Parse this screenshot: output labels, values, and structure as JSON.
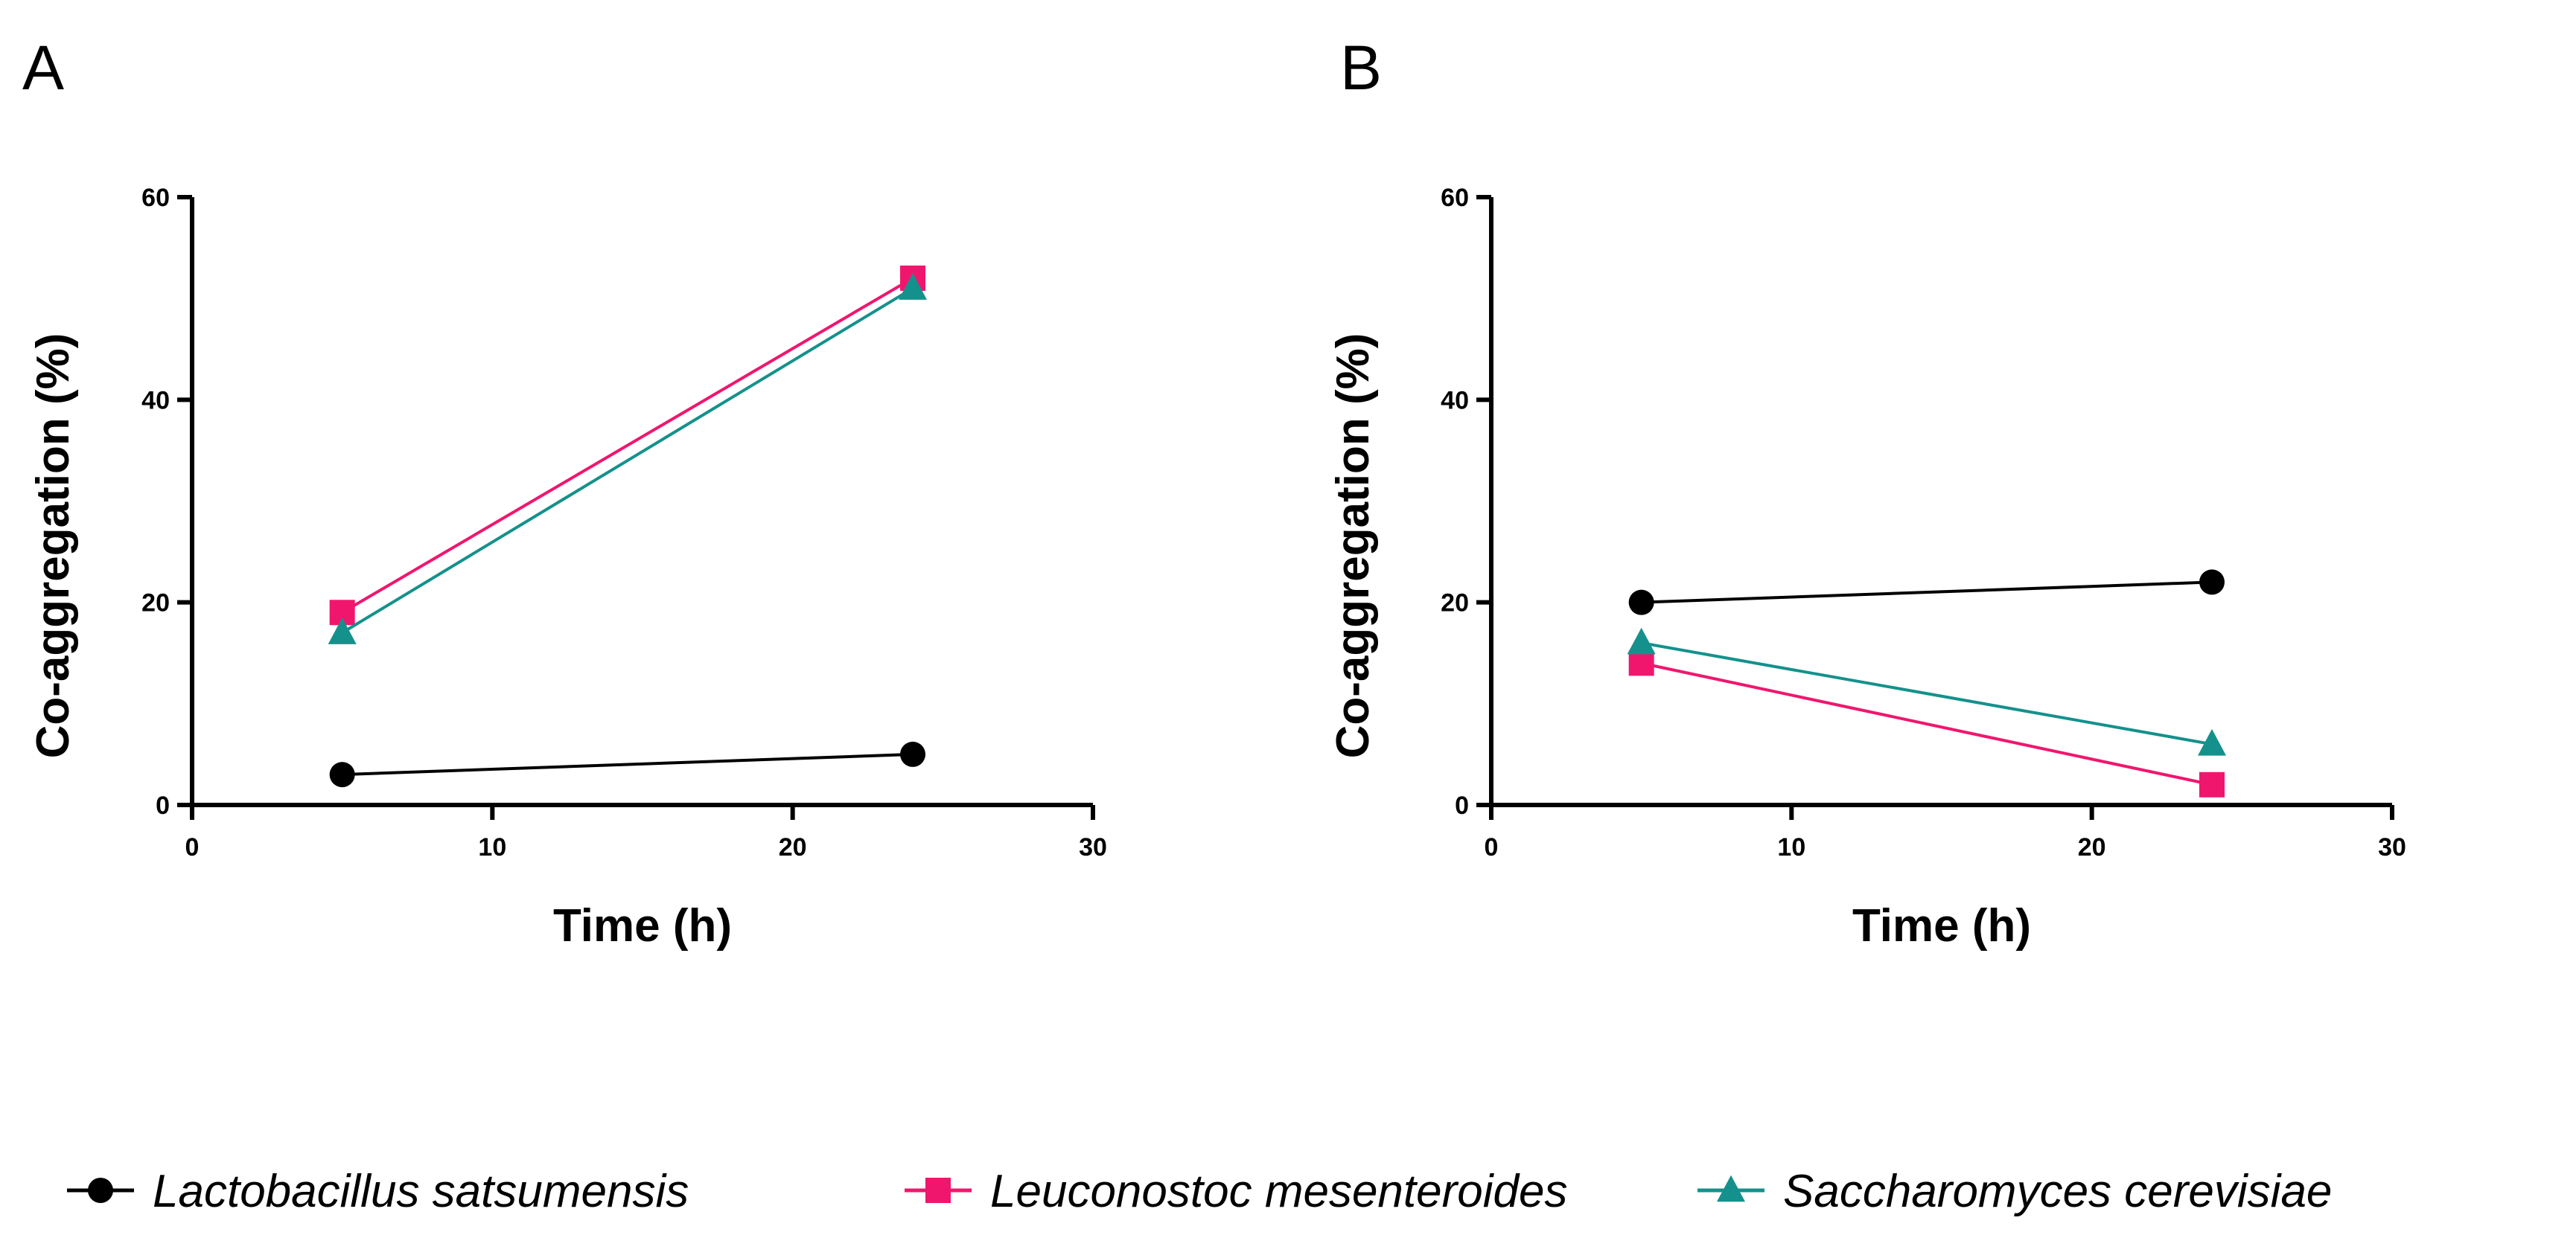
{
  "legend": {
    "placement": "bottom",
    "entries": [
      {
        "label": "Lactobacillus satsumensis",
        "marker": "circle",
        "color": "#000000"
      },
      {
        "label": "Leuconostoc mesenteroides",
        "marker": "square",
        "color": "#f0166e"
      },
      {
        "label": "Saccharomyces cerevisiae",
        "marker": "triangle",
        "color": "#14918c"
      }
    ]
  },
  "chart_data": [
    {
      "type": "line",
      "panel": "A",
      "xlabel": "Time (h)",
      "ylabel": "Co-aggregation (%)",
      "xlim": [
        0,
        30
      ],
      "ylim": [
        0,
        60
      ],
      "xticks": [
        0,
        10,
        20,
        30
      ],
      "yticks": [
        0,
        20,
        40,
        60
      ],
      "grid": false,
      "series": [
        {
          "name": "Lactobacillus satsumensis",
          "marker": "circle",
          "color": "#000000",
          "x": [
            5,
            24
          ],
          "y": [
            3,
            5
          ]
        },
        {
          "name": "Leuconostoc mesenteroides",
          "marker": "square",
          "color": "#f0166e",
          "x": [
            5,
            24
          ],
          "y": [
            19,
            52
          ]
        },
        {
          "name": "Saccharomyces cerevisiae",
          "marker": "triangle",
          "color": "#14918c",
          "x": [
            5,
            24
          ],
          "y": [
            17,
            51
          ]
        }
      ]
    },
    {
      "type": "line",
      "panel": "B",
      "xlabel": "Time (h)",
      "ylabel": "Co-aggregation (%)",
      "xlim": [
        0,
        30
      ],
      "ylim": [
        0,
        60
      ],
      "xticks": [
        0,
        10,
        20,
        30
      ],
      "yticks": [
        0,
        20,
        40,
        60
      ],
      "grid": false,
      "series": [
        {
          "name": "Lactobacillus satsumensis",
          "marker": "circle",
          "color": "#000000",
          "x": [
            5,
            24
          ],
          "y": [
            20,
            22
          ]
        },
        {
          "name": "Leuconostoc mesenteroides",
          "marker": "square",
          "color": "#f0166e",
          "x": [
            5,
            24
          ],
          "y": [
            14,
            2
          ]
        },
        {
          "name": "Saccharomyces cerevisiae",
          "marker": "triangle",
          "color": "#14918c",
          "x": [
            5,
            24
          ],
          "y": [
            16,
            6
          ]
        }
      ]
    }
  ]
}
